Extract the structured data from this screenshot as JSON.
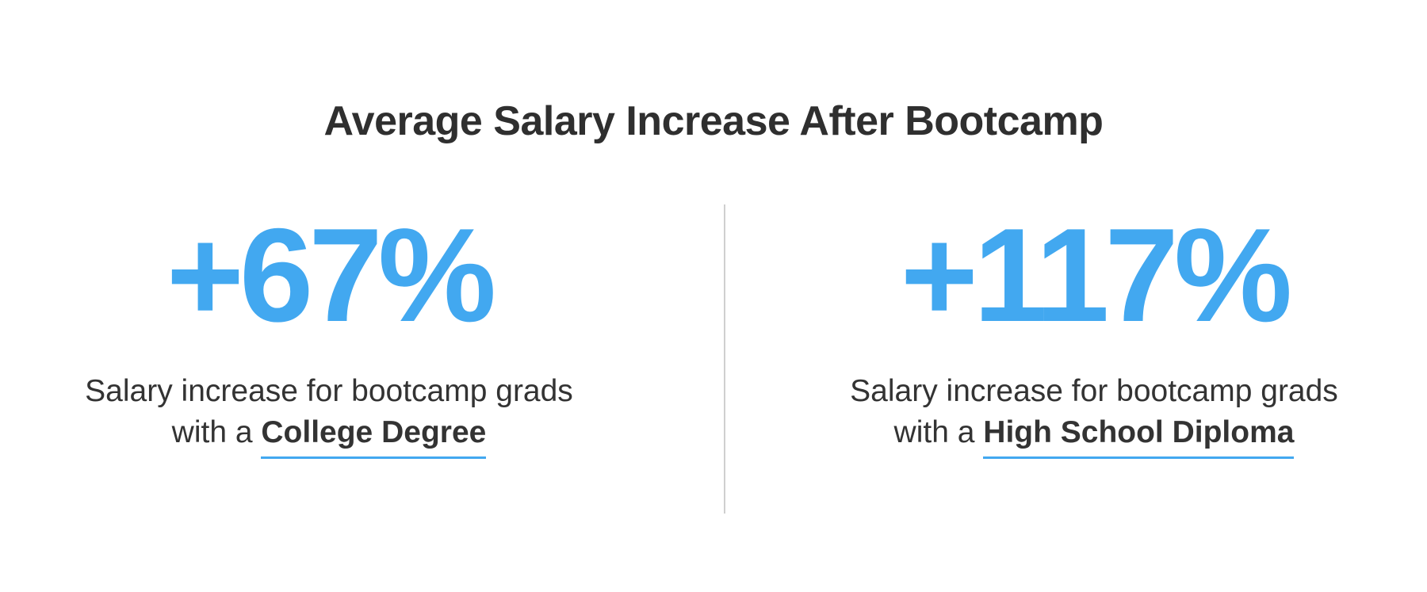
{
  "title": "Average Salary Increase After Bootcamp",
  "colors": {
    "accent": "#42a8f0",
    "text": "#333333",
    "divider": "#cfcfcf"
  },
  "stats": [
    {
      "value": "+67%",
      "line1": "Salary increase for bootcamp grads",
      "line2_prefix": "with a",
      "line2_emphasis": "College Degree"
    },
    {
      "value": "+117%",
      "line1": "Salary increase for bootcamp grads",
      "line2_prefix": "with a",
      "line2_emphasis": "High School Diploma"
    }
  ]
}
